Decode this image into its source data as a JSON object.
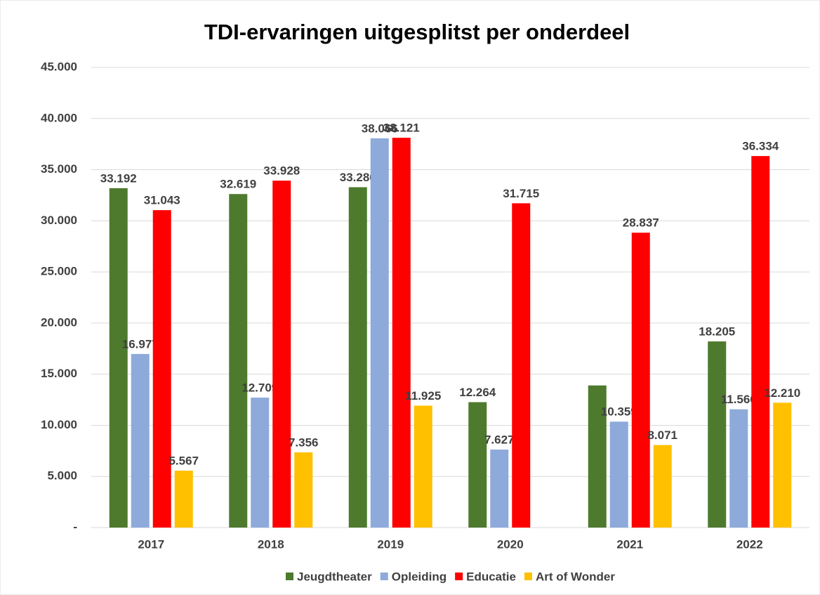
{
  "chart_data": {
    "type": "bar",
    "title": "TDI-ervaringen uitgesplitst per onderdeel",
    "categories": [
      "2017",
      "2018",
      "2019",
      "2020",
      "2021",
      "2022"
    ],
    "series": [
      {
        "name": "Jeugdtheater",
        "color": "#4e7a2e",
        "values": [
          33192,
          32619,
          33286,
          12264,
          13900,
          18205
        ],
        "value_labels": [
          "33.192",
          "32.619",
          "33.286",
          "12.264",
          null,
          "18.205"
        ]
      },
      {
        "name": "Opleiding",
        "color": "#8eaadb",
        "values": [
          16977,
          12709,
          38066,
          7627,
          10359,
          11566
        ],
        "value_labels": [
          "16.977",
          "12.709",
          "38.066",
          "7.627",
          "10.359",
          "11.566"
        ]
      },
      {
        "name": "Educatie",
        "color": "#ff0000",
        "values": [
          31043,
          33928,
          38121,
          31715,
          28837,
          36334
        ],
        "value_labels": [
          "31.043",
          "33.928",
          "38.121",
          "31.715",
          "28.837",
          "36.334"
        ]
      },
      {
        "name": "Art of Wonder",
        "color": "#ffc000",
        "values": [
          5567,
          7356,
          11925,
          null,
          8071,
          12210
        ],
        "value_labels": [
          "5.567",
          "7.356",
          "11.925",
          null,
          "8.071",
          "12.210"
        ]
      }
    ],
    "ylim": [
      0,
      45000
    ],
    "yticks": [
      {
        "value": 0,
        "label": "-"
      },
      {
        "value": 5000,
        "label": "5.000"
      },
      {
        "value": 10000,
        "label": "10.000"
      },
      {
        "value": 15000,
        "label": "15.000"
      },
      {
        "value": 20000,
        "label": "20.000"
      },
      {
        "value": 25000,
        "label": "25.000"
      },
      {
        "value": 30000,
        "label": "30.000"
      },
      {
        "value": 35000,
        "label": "35.000"
      },
      {
        "value": 40000,
        "label": "40.000"
      },
      {
        "value": 45000,
        "label": "45.000"
      }
    ],
    "grid": true,
    "legend": "bottom"
  }
}
